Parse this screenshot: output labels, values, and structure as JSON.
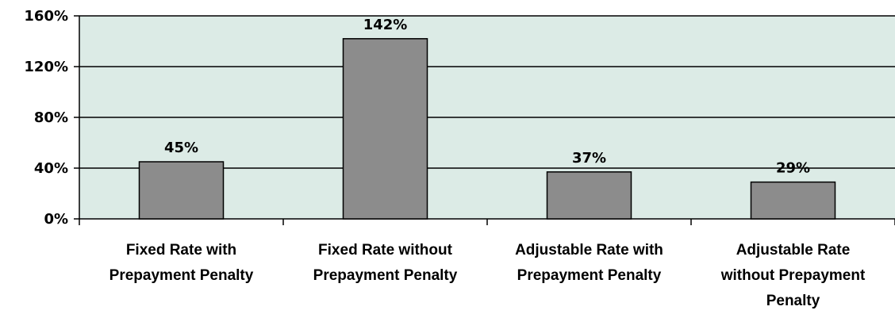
{
  "chart_data": {
    "type": "bar",
    "categories": [
      [
        "Fixed Rate with",
        "Prepayment Penalty"
      ],
      [
        "Fixed Rate without",
        "Prepayment Penalty"
      ],
      [
        "Adjustable Rate with",
        "Prepayment Penalty"
      ],
      [
        "Adjustable Rate",
        "without Prepayment",
        "Penalty"
      ]
    ],
    "values": [
      45,
      142,
      37,
      29
    ],
    "value_labels": [
      "45%",
      "142%",
      "37%",
      "29%"
    ],
    "yticks": [
      0,
      40,
      80,
      120,
      160
    ],
    "ytick_labels": [
      "0%",
      "40%",
      "80%",
      "120%",
      "160%"
    ],
    "ylim": [
      0,
      160
    ],
    "grid": true,
    "legend": "none"
  },
  "colors": {
    "plot_background": "#DCEBE6",
    "bar_fill": "#8C8C8C",
    "bar_stroke": "#000000",
    "gridline": "#000000"
  }
}
